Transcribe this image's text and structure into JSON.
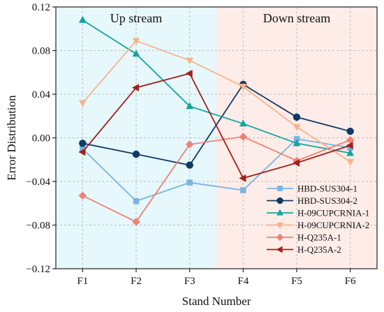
{
  "chart_data": {
    "type": "line",
    "xlabel": "Stand Number",
    "ylabel": "Error Distribution",
    "categories": [
      "F1",
      "F2",
      "F3",
      "F4",
      "F5",
      "F6"
    ],
    "ylim": [
      -0.12,
      0.12
    ],
    "yticks": [
      -0.12,
      -0.08,
      -0.04,
      0.0,
      0.04,
      0.08,
      0.12
    ],
    "ytick_labels": [
      "−0.12",
      "−0.08",
      "−0.04",
      "0.00",
      "0.04",
      "0.08",
      "0.12"
    ],
    "grid": true,
    "legend_position": "bottom-right",
    "regions": [
      {
        "label": "Up stream",
        "from": "F1",
        "to": "F3",
        "color": "#e6f8fc"
      },
      {
        "label": "Down stream",
        "from": "F4",
        "to": "F6",
        "color": "#fdece7"
      }
    ],
    "series": [
      {
        "name": "HBD-SUS304-1",
        "color": "#7ab4e0",
        "marker": "square",
        "values": [
          -0.01,
          -0.058,
          -0.041,
          -0.048,
          -0.001,
          -0.009
        ]
      },
      {
        "name": "HBD-SUS304-2",
        "color": "#103a66",
        "marker": "circle",
        "values": [
          -0.005,
          -0.015,
          -0.025,
          0.049,
          0.019,
          0.006
        ]
      },
      {
        "name": "H-09CUPCRNIA-1",
        "color": "#14a3a0",
        "marker": "triangle-up",
        "values": [
          0.108,
          0.077,
          0.029,
          0.013,
          -0.005,
          -0.014
        ]
      },
      {
        "name": "H-09CUPCRNIA-2",
        "color": "#f8b28a",
        "marker": "triangle-down",
        "values": [
          0.032,
          0.089,
          0.071,
          0.047,
          0.01,
          -0.022
        ]
      },
      {
        "name": "H-Q235A-1",
        "color": "#ee8275",
        "marker": "diamond",
        "values": [
          -0.053,
          -0.077,
          -0.006,
          0.001,
          -0.021,
          -0.002
        ]
      },
      {
        "name": "H-Q235A-2",
        "color": "#a3201a",
        "marker": "triangle-left",
        "values": [
          -0.013,
          0.046,
          0.059,
          -0.037,
          -0.023,
          -0.007
        ]
      }
    ]
  }
}
